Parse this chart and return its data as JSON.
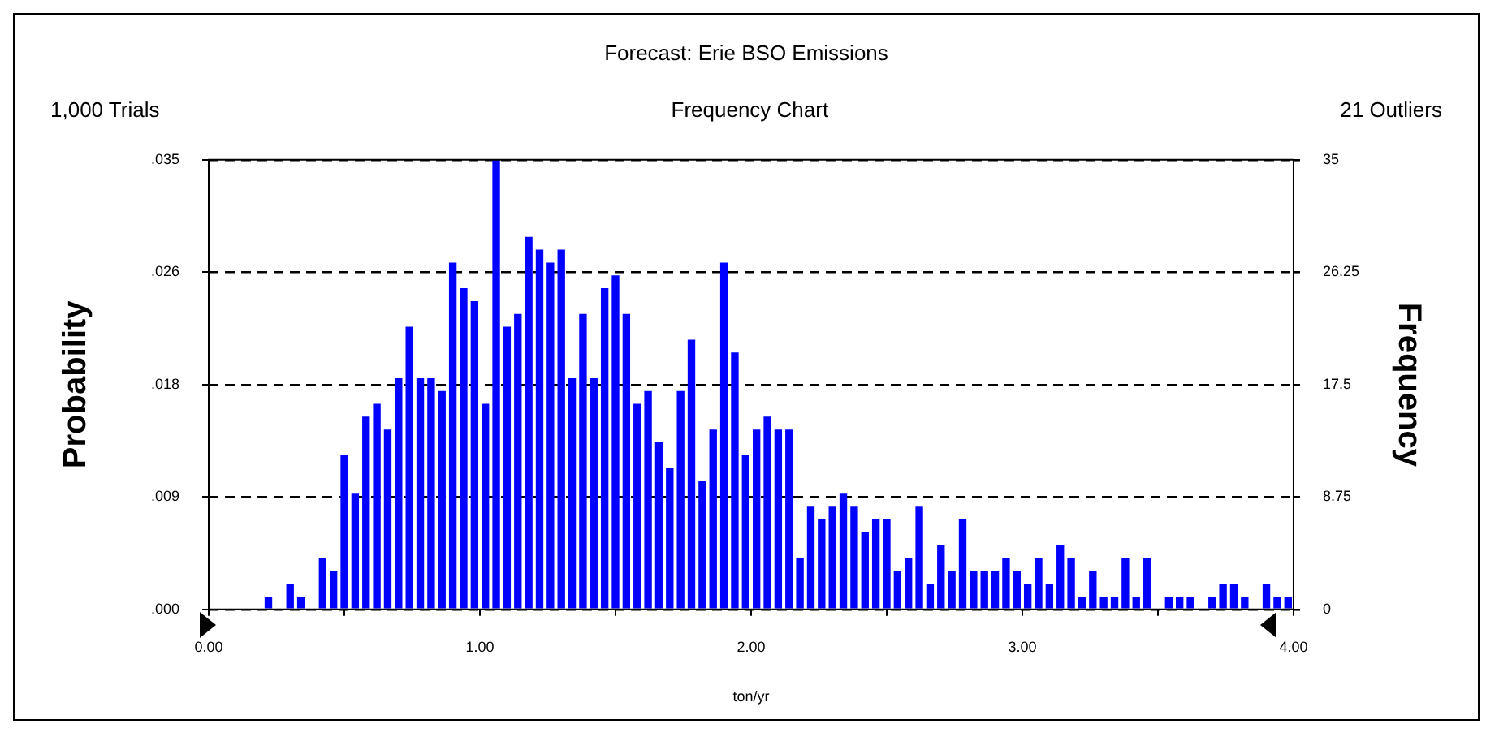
{
  "chart_data": {
    "type": "histogram",
    "title": "Forecast: Erie BSO Emissions",
    "subtitle": "Frequency Chart",
    "annotations": [
      "1,000 Trials",
      "21 Outliers"
    ],
    "xlabel": "ton/yr",
    "ylabel": "Frequency",
    "y2label": "Probability",
    "bins": [
      0.2,
      0.24,
      0.28,
      0.32,
      0.36,
      0.4,
      0.44,
      0.48,
      0.52,
      0.56,
      0.6,
      0.64,
      0.68,
      0.72,
      0.76,
      0.8,
      0.84,
      0.88,
      0.92,
      0.96,
      1,
      1.04,
      1.08,
      1.12,
      1.16,
      1.2,
      1.24,
      1.28,
      1.32,
      1.36,
      1.4,
      1.44,
      1.48,
      1.52,
      1.56,
      1.6,
      1.64,
      1.68,
      1.72,
      1.76,
      1.8,
      1.84,
      1.88,
      1.92,
      1.96,
      2,
      2.04,
      2.08,
      2.12,
      2.16,
      2.2,
      2.24,
      2.28,
      2.32,
      2.36,
      2.4,
      2.44,
      2.48,
      2.52,
      2.56,
      2.6,
      2.64,
      2.68,
      2.72,
      2.76,
      2.8,
      2.84,
      2.88,
      2.92,
      2.96,
      3,
      3.04,
      3.08,
      3.12,
      3.16,
      3.2,
      3.24,
      3.28,
      3.32,
      3.36,
      3.4,
      3.44,
      3.48,
      3.52,
      3.56,
      3.6,
      3.64,
      3.68,
      3.72,
      3.76,
      3.8,
      3.84,
      3.88,
      3.92,
      3.96,
      4
    ],
    "values": [
      1,
      0,
      2,
      1,
      0,
      4,
      3,
      12,
      9,
      15,
      16,
      14,
      18,
      22,
      18,
      18,
      17,
      27,
      25,
      24,
      16,
      35,
      22,
      23,
      29,
      28,
      27,
      28,
      18,
      23,
      18,
      25,
      26,
      23,
      16,
      17,
      13,
      11,
      17,
      21,
      10,
      14,
      27,
      20,
      12,
      14,
      15,
      14,
      14,
      4,
      8,
      7,
      8,
      9,
      8,
      6,
      7,
      7,
      3,
      4,
      8,
      2,
      5,
      3,
      7,
      3,
      3,
      3,
      4,
      3,
      2,
      4,
      2,
      5,
      4,
      1,
      3,
      1,
      1,
      4,
      1,
      4,
      0,
      1,
      1,
      1,
      0,
      1,
      2,
      2,
      1,
      0,
      2,
      1,
      1
    ],
    "color": "#0000ff",
    "xlim": [
      0,
      4
    ],
    "xticks": [
      {
        "value": 0,
        "label": "0.00"
      },
      {
        "value": 0.5,
        "label": null
      },
      {
        "value": 1,
        "label": "1.00"
      },
      {
        "value": 1.5,
        "label": null
      },
      {
        "value": 2,
        "label": "2.00"
      },
      {
        "value": 2.5,
        "label": null
      },
      {
        "value": 3,
        "label": "3.00"
      },
      {
        "value": 3.5,
        "label": null
      },
      {
        "value": 4,
        "label": "4.00"
      }
    ],
    "ylim": [
      0,
      35
    ],
    "yticks": [
      0,
      8.75,
      17.5,
      26.25,
      35
    ],
    "y2lim": [
      0,
      0.035
    ],
    "y2ticks": [
      {
        "value": 0,
        "label": ".000"
      },
      {
        "value": 0.00875,
        "label": ".009"
      },
      {
        "value": 0.0175,
        "label": ".018"
      },
      {
        "value": 0.02625,
        "label": ".026"
      },
      {
        "value": 0.035,
        "label": ".035"
      }
    ],
    "grid": "y",
    "legend": false
  }
}
